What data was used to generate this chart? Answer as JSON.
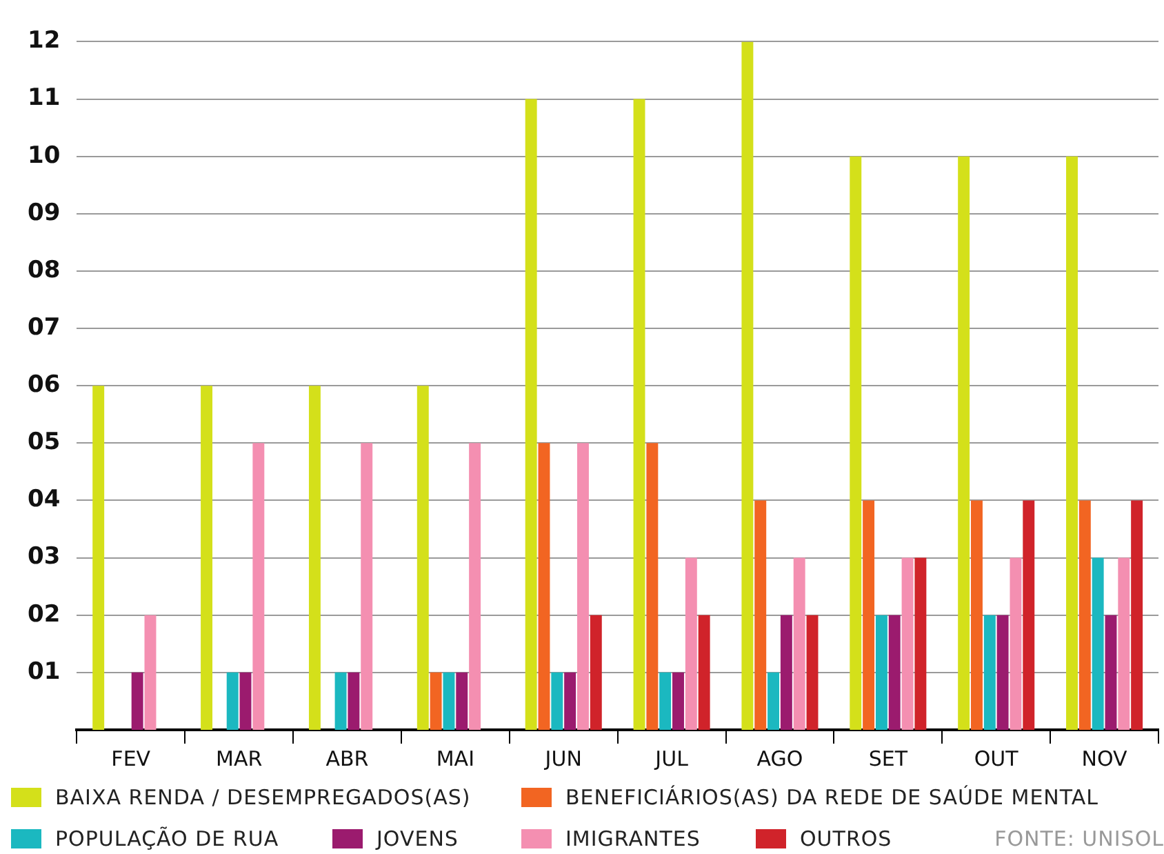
{
  "chart_data": {
    "type": "bar",
    "categories": [
      "FEV",
      "MAR",
      "ABR",
      "MAI",
      "JUN",
      "JUL",
      "AGO",
      "SET",
      "OUT",
      "NOV"
    ],
    "series": [
      {
        "name": "BAIXA RENDA / DESEMPREGADOS(AS)",
        "color": "#d4e01a",
        "values": [
          6,
          6,
          6,
          6,
          11,
          11,
          12,
          10,
          10,
          10
        ]
      },
      {
        "name": "BENEFICIÁRIOS(AS) DA REDE DE SAÚDE MENTAL",
        "color": "#f26522",
        "values": [
          0,
          0,
          0,
          1,
          5,
          5,
          4,
          4,
          4,
          4
        ]
      },
      {
        "name": "POPULAÇÃO DE RUA",
        "color": "#1bb8c0",
        "values": [
          0,
          1,
          1,
          1,
          1,
          1,
          1,
          2,
          2,
          3
        ]
      },
      {
        "name": "JOVENS",
        "color": "#9b1b6e",
        "values": [
          1,
          1,
          1,
          1,
          1,
          1,
          2,
          2,
          2,
          2
        ]
      },
      {
        "name": "IMIGRANTES",
        "color": "#f48fb1",
        "values": [
          2,
          5,
          5,
          5,
          5,
          3,
          3,
          3,
          3,
          3
        ]
      },
      {
        "name": "OUTROS",
        "color": "#d0232a",
        "values": [
          0,
          0,
          0,
          0,
          2,
          2,
          2,
          3,
          4,
          4
        ]
      }
    ],
    "ylim": [
      0,
      12
    ],
    "yticks": [
      {
        "value": 1,
        "label": "01"
      },
      {
        "value": 2,
        "label": "02"
      },
      {
        "value": 3,
        "label": "03"
      },
      {
        "value": 4,
        "label": "04"
      },
      {
        "value": 5,
        "label": "05"
      },
      {
        "value": 6,
        "label": "06"
      },
      {
        "value": 7,
        "label": "07"
      },
      {
        "value": 8,
        "label": "08"
      },
      {
        "value": 9,
        "label": "09"
      },
      {
        "value": 10,
        "label": "10"
      },
      {
        "value": 11,
        "label": "11"
      },
      {
        "value": 12,
        "label": "12"
      }
    ],
    "grid": "y",
    "legend": "bottom",
    "annotations": [
      "FONTE: UNISOL"
    ]
  }
}
